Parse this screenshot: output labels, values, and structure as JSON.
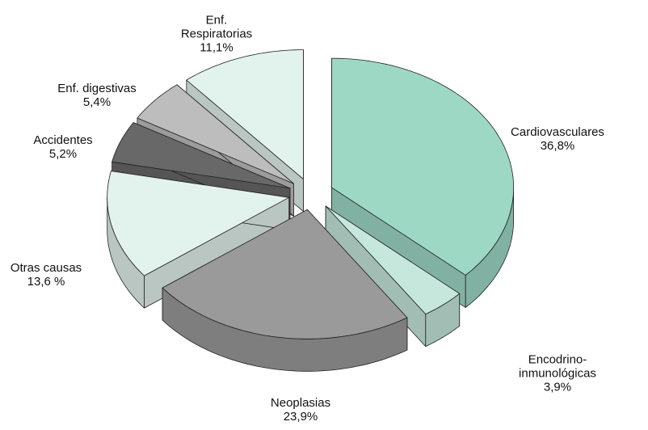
{
  "chart_data": {
    "type": "pie3d",
    "categories": [
      "Cardiovasculares",
      "Encodrino-inmunológicas",
      "Neoplasias",
      "Otras causas",
      "Accidentes",
      "Enf. digestivas",
      "Enf. Respiratorias"
    ],
    "values": [
      36.8,
      3.9,
      23.9,
      13.6,
      5.2,
      5.4,
      11.1
    ],
    "value_labels": [
      "36,8%",
      "3,9%",
      "23,9%",
      "13,6 %",
      "5,2%",
      "5,4%",
      "11,1%"
    ],
    "colors": [
      "#9dd8c5",
      "#c6e8dc",
      "#9a9a9a",
      "#e2f2ec",
      "#686868",
      "#bdbdbd",
      "#e2f2ec"
    ]
  }
}
